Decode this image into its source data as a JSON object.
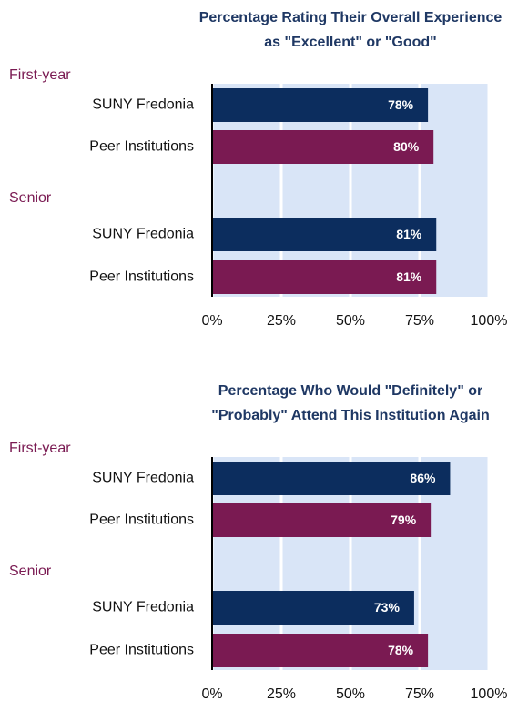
{
  "chart_data": [
    {
      "type": "bar",
      "orientation": "horizontal",
      "title": [
        "Percentage Rating Their Overall Experience",
        "as \"Excellent\" or \"Good\""
      ],
      "groups": [
        "First-year",
        "Senior"
      ],
      "categories": [
        "SUNY Fredonia",
        "Peer Institutions"
      ],
      "colors": [
        "#0c2d5e",
        "#7a1a52"
      ],
      "values": [
        [
          78,
          80
        ],
        [
          81,
          81
        ]
      ],
      "value_labels": [
        [
          "78%",
          "80%"
        ],
        [
          "81%",
          "81%"
        ]
      ],
      "xlim": [
        0,
        100
      ],
      "xticks": [
        {
          "value": 0,
          "label": "0%"
        },
        {
          "value": 25,
          "label": "25%"
        },
        {
          "value": 50,
          "label": "50%"
        },
        {
          "value": 75,
          "label": "75%"
        },
        {
          "value": 100,
          "label": "100%"
        }
      ],
      "grid": true
    },
    {
      "type": "bar",
      "orientation": "horizontal",
      "title": [
        "Percentage Who Would \"Definitely\" or",
        "\"Probably\" Attend This Institution Again"
      ],
      "groups": [
        "First-year",
        "Senior"
      ],
      "categories": [
        "SUNY Fredonia",
        "Peer Institutions"
      ],
      "colors": [
        "#0c2d5e",
        "#7a1a52"
      ],
      "values": [
        [
          86,
          79
        ],
        [
          73,
          78
        ]
      ],
      "value_labels": [
        [
          "86%",
          "79%"
        ],
        [
          "73%",
          "78%"
        ]
      ],
      "xlim": [
        0,
        100
      ],
      "xticks": [
        {
          "value": 0,
          "label": "0%"
        },
        {
          "value": 25,
          "label": "25%"
        },
        {
          "value": 50,
          "label": "50%"
        },
        {
          "value": 75,
          "label": "75%"
        },
        {
          "value": 100,
          "label": "100%"
        }
      ],
      "grid": true
    }
  ]
}
